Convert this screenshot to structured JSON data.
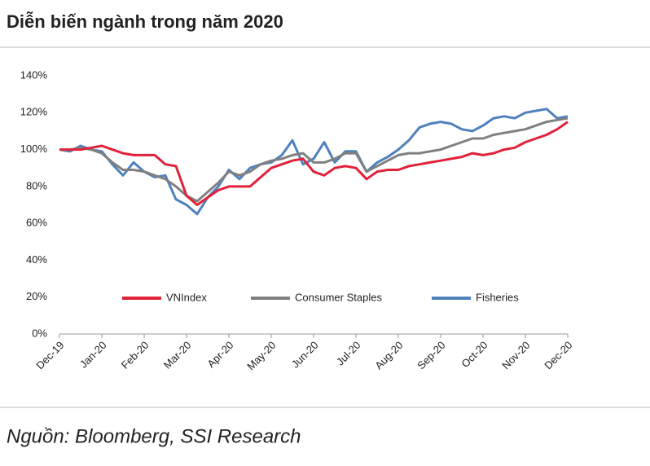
{
  "chart_data": {
    "type": "line",
    "title": "Diễn biến ngành trong năm 2020",
    "categories": [
      "Dec-19",
      null,
      null,
      null,
      "Jan-20",
      null,
      null,
      null,
      "Feb-20",
      null,
      null,
      null,
      "Mar-20",
      null,
      null,
      null,
      "Apr-20",
      null,
      null,
      null,
      "May-20",
      null,
      null,
      null,
      "Jun-20",
      null,
      null,
      null,
      "Jul-20",
      null,
      null,
      null,
      "Aug-20",
      null,
      null,
      null,
      "Sep-20",
      null,
      null,
      null,
      "Oct-20",
      null,
      null,
      null,
      "Nov-20",
      null,
      null,
      null,
      "Dec-20"
    ],
    "series": [
      {
        "name": "VNIndex",
        "color": "#e0223a",
        "values": [
          100,
          100,
          100,
          101,
          102,
          100,
          98,
          97,
          97,
          97,
          92,
          91,
          75,
          70,
          74,
          78,
          80,
          80,
          80,
          85,
          90,
          92,
          94,
          95,
          88,
          86,
          90,
          91,
          90,
          84,
          88,
          89,
          89,
          91,
          92,
          93,
          94,
          95,
          96,
          98,
          97,
          98,
          100,
          101,
          104,
          106,
          108,
          111,
          115
        ]
      },
      {
        "name": "Consumer Staples",
        "color": "#808080",
        "values": [
          100,
          100,
          101,
          100,
          98,
          93,
          89,
          89,
          88,
          86,
          84,
          80,
          75,
          72,
          77,
          82,
          88,
          86,
          88,
          92,
          94,
          95,
          97,
          98,
          93,
          93,
          95,
          98,
          98,
          88,
          91,
          94,
          97,
          98,
          98,
          99,
          100,
          102,
          104,
          106,
          106,
          108,
          109,
          110,
          111,
          113,
          115,
          116,
          117
        ]
      },
      {
        "name": "Fisheries",
        "color": "#4f81bd",
        "values": [
          100,
          99,
          102,
          100,
          99,
          92,
          86,
          93,
          88,
          85,
          86,
          73,
          70,
          65,
          74,
          80,
          89,
          84,
          90,
          92,
          93,
          97,
          105,
          92,
          95,
          104,
          93,
          99,
          99,
          88,
          93,
          96,
          100,
          105,
          112,
          114,
          115,
          114,
          111,
          110,
          113,
          117,
          118,
          117,
          120,
          121,
          122,
          117,
          118
        ]
      }
    ],
    "ylim": [
      0,
      140
    ],
    "yticks": [
      {
        "value": 0,
        "label": "0%"
      },
      {
        "value": 20,
        "label": "20%"
      },
      {
        "value": 40,
        "label": "40%"
      },
      {
        "value": 60,
        "label": "60%"
      },
      {
        "value": 80,
        "label": "80%"
      },
      {
        "value": 100,
        "label": "100%"
      },
      {
        "value": 120,
        "label": "120%"
      },
      {
        "value": 140,
        "label": "140%"
      }
    ],
    "grid": false
  },
  "source": "Nguồn: Bloomberg, SSI Research"
}
